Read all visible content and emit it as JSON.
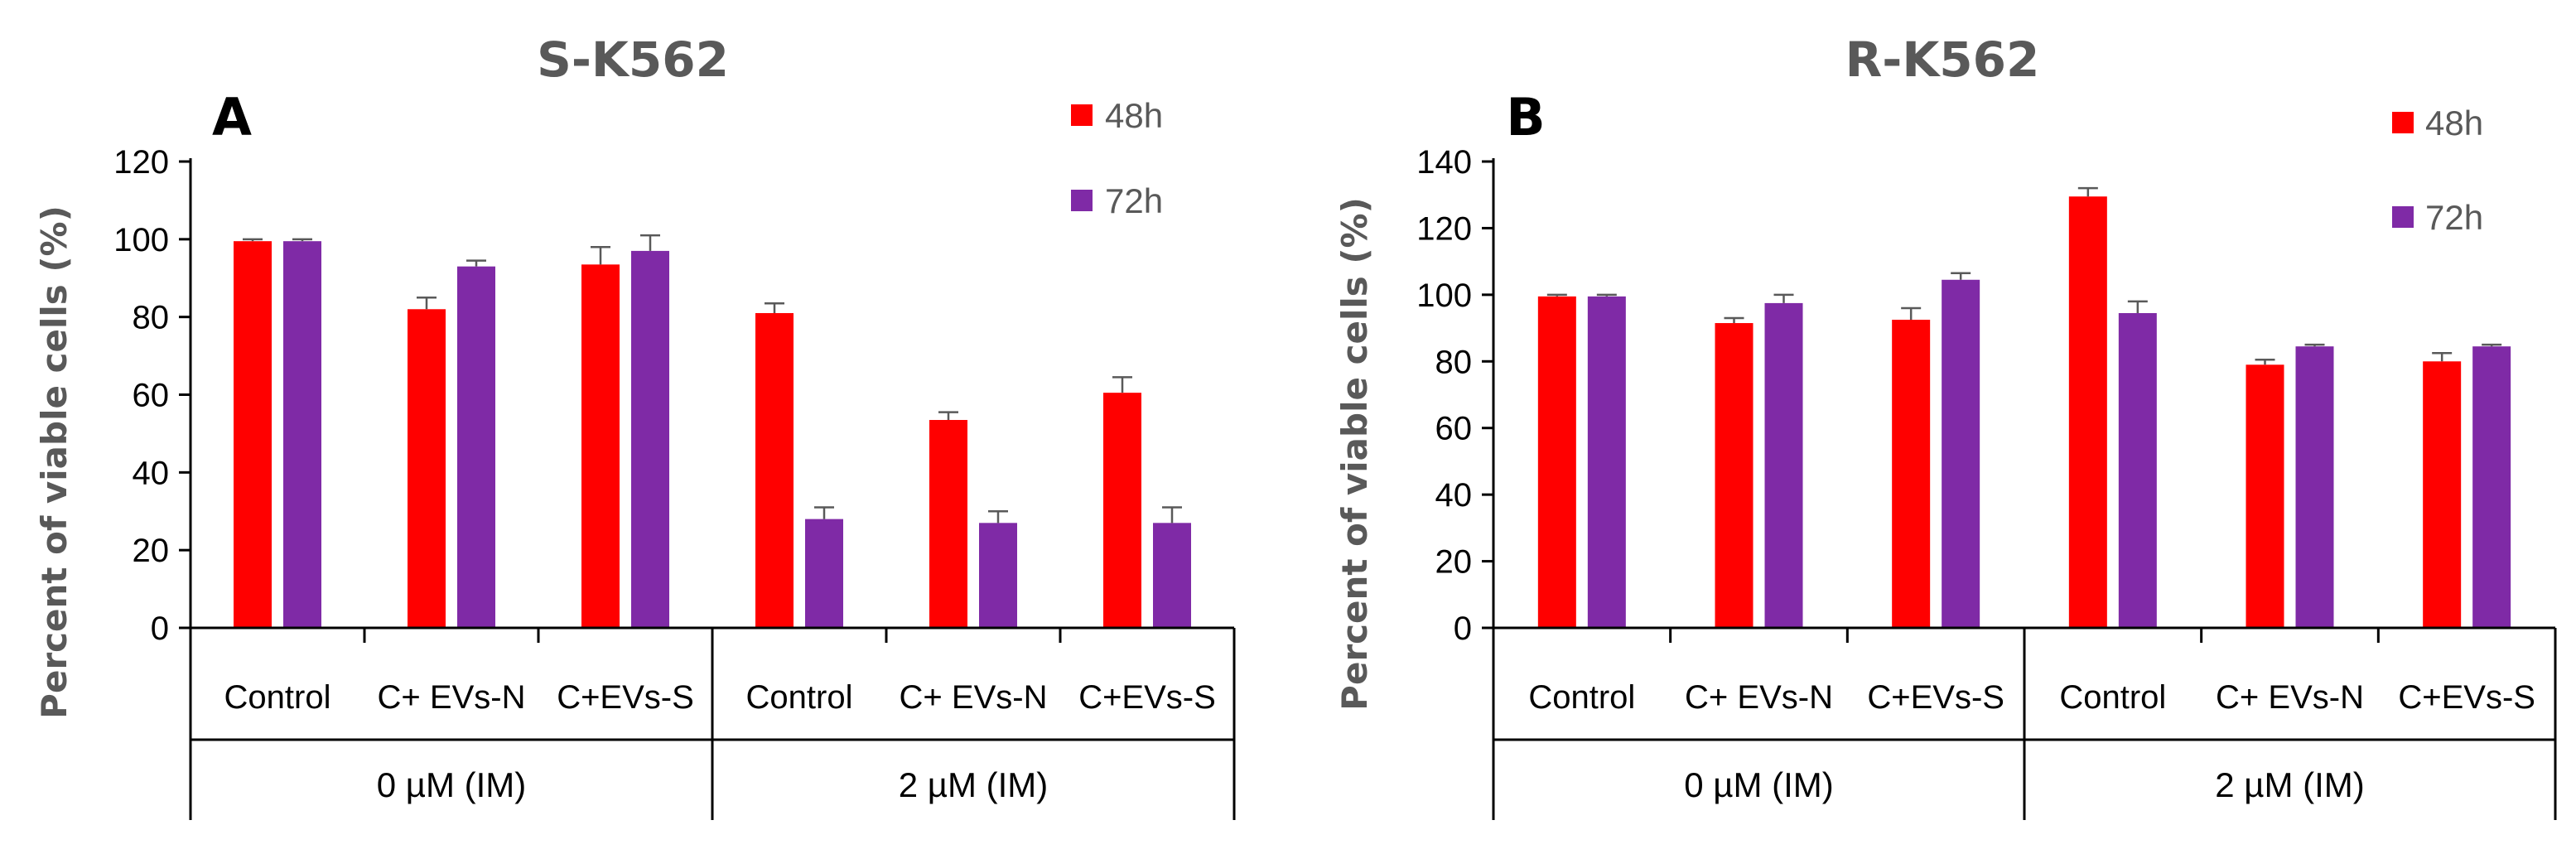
{
  "chart_data": [
    {
      "type": "bar",
      "title": "S-K562",
      "panel_label": "A",
      "ylabel": "Percent of viable cells (%)",
      "ylim": [
        0,
        120
      ],
      "yticks": [
        0,
        20,
        40,
        60,
        80,
        100,
        120
      ],
      "categories": [
        "Control",
        "C+ EVs-N",
        "C+EVs-S",
        "Control",
        "C+ EVs-N",
        "C+EVs-S"
      ],
      "groups": [
        {
          "label": "0 µM (IM)",
          "span": [
            0,
            3
          ]
        },
        {
          "label": "2 µM (IM)",
          "span": [
            3,
            6
          ]
        }
      ],
      "legend_position": "top-right",
      "series": [
        {
          "name": "48h",
          "color": "#FF0000",
          "values": [
            99.5,
            82,
            93.5,
            81,
            53.5,
            60.5
          ],
          "errors": [
            0.5,
            3,
            4.5,
            2.5,
            2,
            4
          ]
        },
        {
          "name": "72h",
          "color": "#7F2AA6",
          "values": [
            99.5,
            93,
            97,
            28,
            27,
            27
          ],
          "errors": [
            0.5,
            1.5,
            4,
            3,
            3,
            4
          ]
        }
      ]
    },
    {
      "type": "bar",
      "title": "R-K562",
      "panel_label": "B",
      "ylabel": "Percent of viable cells (%)",
      "ylim": [
        0,
        140
      ],
      "yticks": [
        0,
        20,
        40,
        60,
        80,
        100,
        120,
        140
      ],
      "categories": [
        "Control",
        "C+ EVs-N",
        "C+EVs-S",
        "Control",
        "C+ EVs-N",
        "C+EVs-S"
      ],
      "groups": [
        {
          "label": "0 µM (IM)",
          "span": [
            0,
            3
          ]
        },
        {
          "label": "2 µM (IM)",
          "span": [
            3,
            6
          ]
        }
      ],
      "legend_position": "top-right",
      "series": [
        {
          "name": "48h",
          "color": "#FF0000",
          "values": [
            99.5,
            91.5,
            92.5,
            129.5,
            79,
            80
          ],
          "errors": [
            0.5,
            1.5,
            3.5,
            2.5,
            1.5,
            2.5
          ]
        },
        {
          "name": "72h",
          "color": "#7F2AA6",
          "values": [
            99.5,
            97.5,
            104.5,
            94.5,
            84.5,
            84.5
          ],
          "errors": [
            0.5,
            2.5,
            2,
            3.5,
            0.5,
            0.5
          ]
        }
      ]
    }
  ]
}
